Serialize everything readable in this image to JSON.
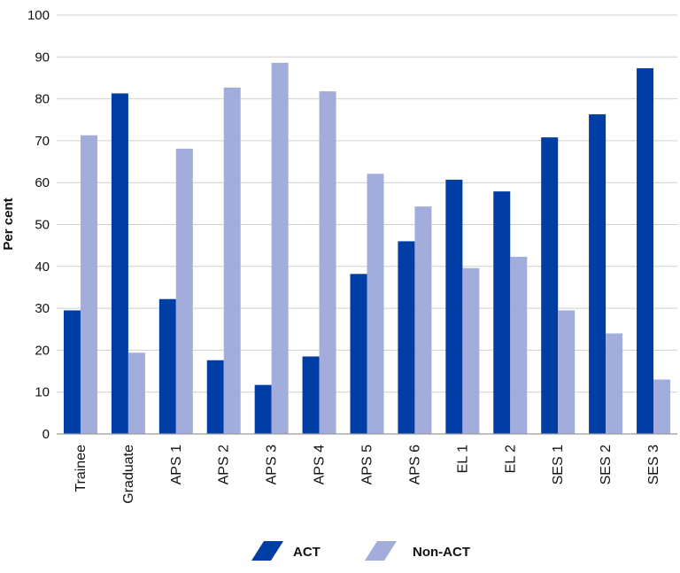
{
  "chart_data": {
    "type": "bar",
    "title": "",
    "xlabel": "",
    "ylabel": "Per cent",
    "ylim": [
      0,
      100
    ],
    "yticks": [
      0,
      10,
      20,
      30,
      40,
      50,
      60,
      70,
      80,
      90,
      100
    ],
    "grid": true,
    "legend_position": "bottom",
    "categories": [
      "Trainee",
      "Graduate",
      "APS 1",
      "APS 2",
      "APS 3",
      "APS 4",
      "APS 5",
      "APS 6",
      "EL 1",
      "EL 2",
      "SES 1",
      "SES 2",
      "SES 3"
    ],
    "series": [
      {
        "name": "ACT",
        "color": "#003da5",
        "values": [
          29.5,
          81.3,
          32.2,
          17.6,
          11.7,
          18.5,
          38.2,
          46.0,
          60.7,
          57.9,
          70.8,
          76.3,
          87.3
        ]
      },
      {
        "name": "Non-ACT",
        "color": "#a3addc",
        "values": [
          71.3,
          19.4,
          68.1,
          82.7,
          88.6,
          81.8,
          62.1,
          54.3,
          39.6,
          42.3,
          29.5,
          24.0,
          13.0
        ]
      }
    ]
  }
}
